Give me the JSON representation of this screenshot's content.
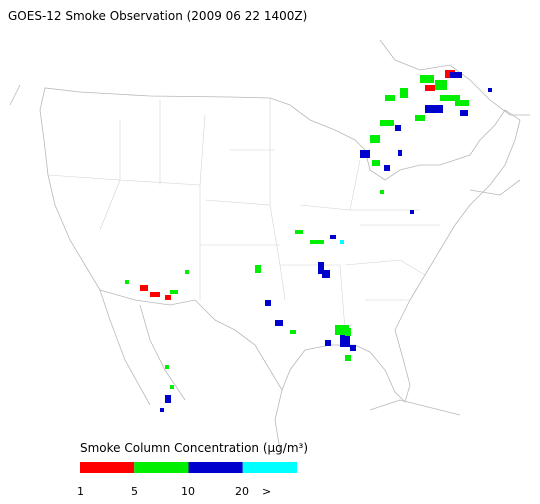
{
  "title": "GOES-12 Smoke Observation (2009 06 22  1400Z)",
  "legend": {
    "title": "Smoke Column Concentration (μg/m³)",
    "colors": [
      "#ff0000",
      "#00ee00",
      "#0000cc",
      "#00ffff"
    ],
    "labels": [
      "1",
      "5",
      "10",
      "20",
      ">"
    ]
  }
}
